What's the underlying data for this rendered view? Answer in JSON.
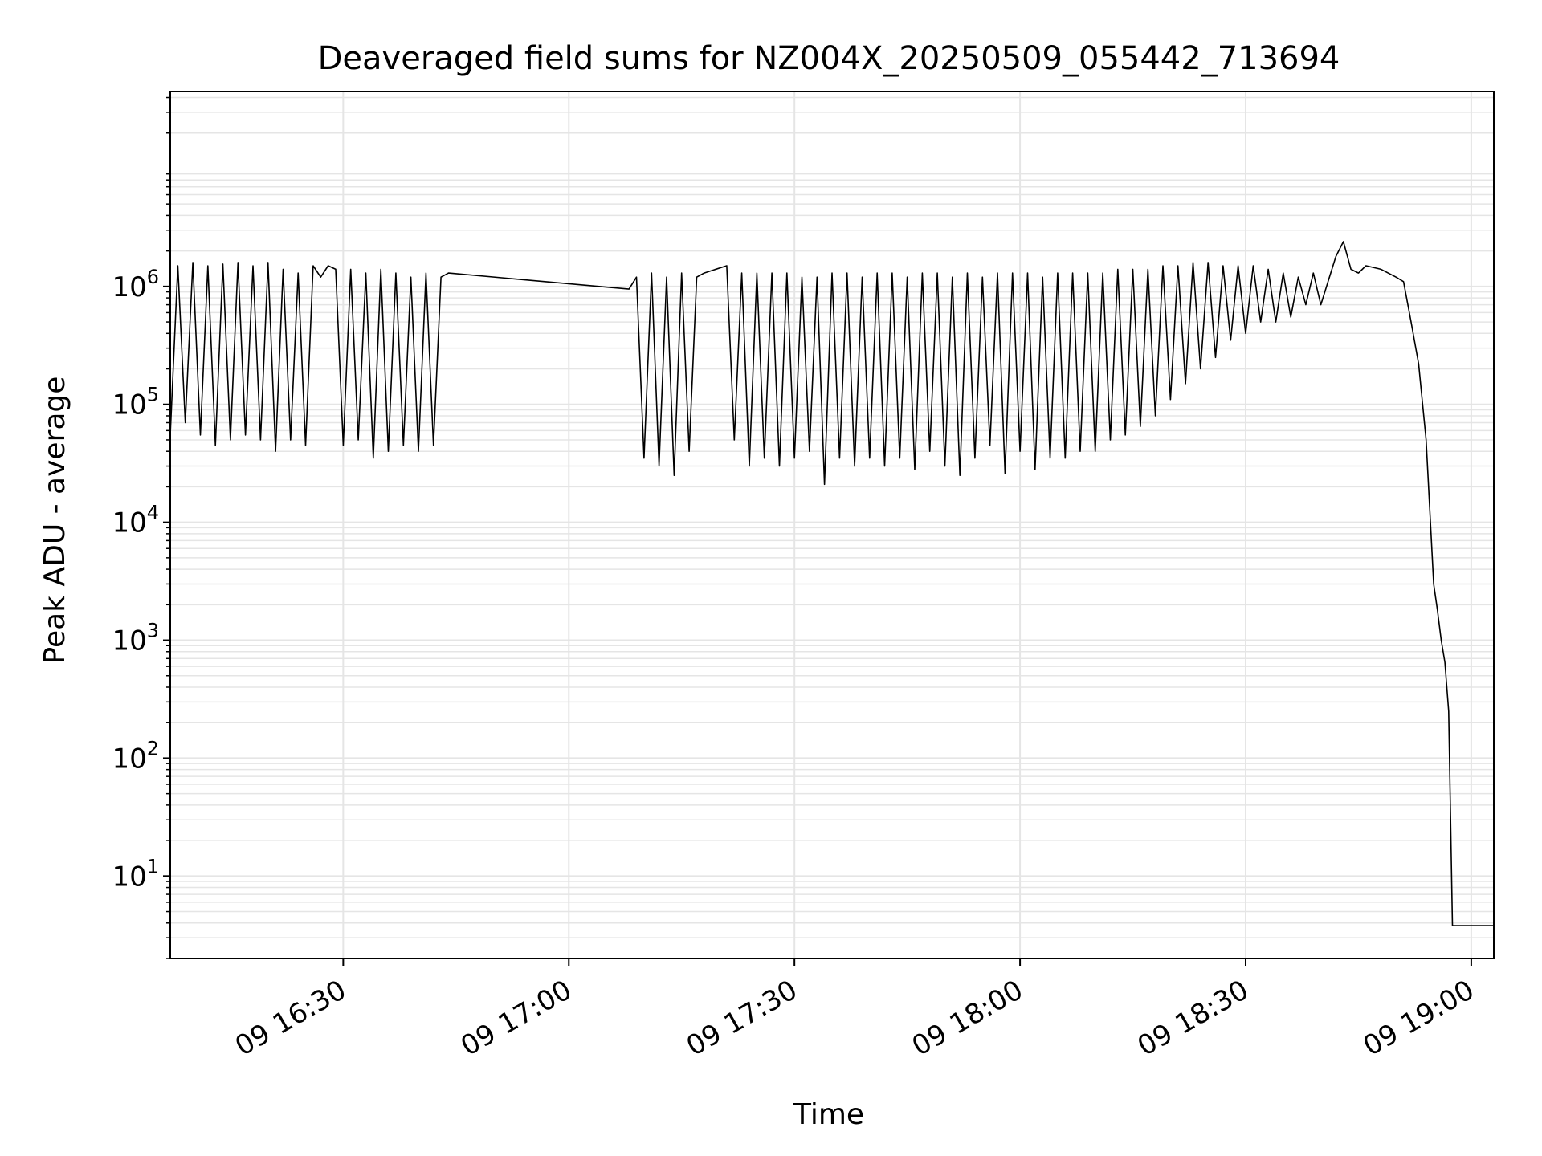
{
  "chart_data": {
    "type": "line",
    "title": "Deaveraged field sums for NZ004X_20250509_055442_713694",
    "xlabel": "Time",
    "ylabel": "Peak ADU - average",
    "yscale": "log",
    "ylim": [
      2,
      45000000
    ],
    "xlim": [
      "2025-05-09 16:07",
      "2025-05-09 19:03"
    ],
    "x_ticks": [
      {
        "t": "2025-05-09 16:30",
        "label": "09 16:30"
      },
      {
        "t": "2025-05-09 17:00",
        "label": "09 17:00"
      },
      {
        "t": "2025-05-09 17:30",
        "label": "09 17:30"
      },
      {
        "t": "2025-05-09 18:00",
        "label": "09 18:00"
      },
      {
        "t": "2025-05-09 18:30",
        "label": "09 18:30"
      },
      {
        "t": "2025-05-09 19:00",
        "label": "09 19:00"
      }
    ],
    "y_ticks": [
      {
        "value": 10,
        "base": "10",
        "exp": "1"
      },
      {
        "value": 100,
        "base": "10",
        "exp": "2"
      },
      {
        "value": 1000,
        "base": "10",
        "exp": "3"
      },
      {
        "value": 10000,
        "base": "10",
        "exp": "4"
      },
      {
        "value": 100000,
        "base": "10",
        "exp": "5"
      },
      {
        "value": 1000000,
        "base": "10",
        "exp": "6"
      }
    ],
    "grid": true,
    "legend": "none",
    "line_color": "#000000",
    "grid_color": "#e5e5e5",
    "series": [
      {
        "points": [
          [
            "2025-05-09 16:07",
            55000
          ],
          [
            "2025-05-09 16:08",
            1500000
          ],
          [
            "2025-05-09 16:09",
            70000
          ],
          [
            "2025-05-09 16:10",
            1600000
          ],
          [
            "2025-05-09 16:11",
            55000
          ],
          [
            "2025-05-09 16:12",
            1500000
          ],
          [
            "2025-05-09 16:13",
            45000
          ],
          [
            "2025-05-09 16:14",
            1550000
          ],
          [
            "2025-05-09 16:15",
            50000
          ],
          [
            "2025-05-09 16:16",
            1600000
          ],
          [
            "2025-05-09 16:17",
            55000
          ],
          [
            "2025-05-09 16:18",
            1500000
          ],
          [
            "2025-05-09 16:19",
            50000
          ],
          [
            "2025-05-09 16:20",
            1600000
          ],
          [
            "2025-05-09 16:21",
            40000
          ],
          [
            "2025-05-09 16:22",
            1400000
          ],
          [
            "2025-05-09 16:23",
            50000
          ],
          [
            "2025-05-09 16:24",
            1300000
          ],
          [
            "2025-05-09 16:25",
            45000
          ],
          [
            "2025-05-09 16:26",
            1500000
          ],
          [
            "2025-05-09 16:27",
            1200000
          ],
          [
            "2025-05-09 16:28",
            1500000
          ],
          [
            "2025-05-09 16:29",
            1400000
          ],
          [
            "2025-05-09 16:30",
            45000
          ],
          [
            "2025-05-09 16:31",
            1400000
          ],
          [
            "2025-05-09 16:32",
            50000
          ],
          [
            "2025-05-09 16:33",
            1300000
          ],
          [
            "2025-05-09 16:34",
            35000
          ],
          [
            "2025-05-09 16:35",
            1400000
          ],
          [
            "2025-05-09 16:36",
            40000
          ],
          [
            "2025-05-09 16:37",
            1300000
          ],
          [
            "2025-05-09 16:38",
            45000
          ],
          [
            "2025-05-09 16:39",
            1200000
          ],
          [
            "2025-05-09 16:40",
            40000
          ],
          [
            "2025-05-09 16:41",
            1300000
          ],
          [
            "2025-05-09 16:42",
            45000
          ],
          [
            "2025-05-09 16:43",
            1200000
          ],
          [
            "2025-05-09 16:44",
            1300000
          ],
          [
            "2025-05-09 17:08",
            950000
          ],
          [
            "2025-05-09 17:09",
            1200000
          ],
          [
            "2025-05-09 17:10",
            35000
          ],
          [
            "2025-05-09 17:11",
            1300000
          ],
          [
            "2025-05-09 17:12",
            30000
          ],
          [
            "2025-05-09 17:13",
            1200000
          ],
          [
            "2025-05-09 17:14",
            25000
          ],
          [
            "2025-05-09 17:15",
            1300000
          ],
          [
            "2025-05-09 17:16",
            40000
          ],
          [
            "2025-05-09 17:17",
            1200000
          ],
          [
            "2025-05-09 17:18",
            1300000
          ],
          [
            "2025-05-09 17:21",
            1500000
          ],
          [
            "2025-05-09 17:22",
            50000
          ],
          [
            "2025-05-09 17:23",
            1300000
          ],
          [
            "2025-05-09 17:24",
            30000
          ],
          [
            "2025-05-09 17:25",
            1300000
          ],
          [
            "2025-05-09 17:26",
            35000
          ],
          [
            "2025-05-09 17:27",
            1300000
          ],
          [
            "2025-05-09 17:28",
            30000
          ],
          [
            "2025-05-09 17:29",
            1300000
          ],
          [
            "2025-05-09 17:30",
            35000
          ],
          [
            "2025-05-09 17:31",
            1200000
          ],
          [
            "2025-05-09 17:32",
            40000
          ],
          [
            "2025-05-09 17:33",
            1200000
          ],
          [
            "2025-05-09 17:34",
            21000
          ],
          [
            "2025-05-09 17:35",
            1300000
          ],
          [
            "2025-05-09 17:36",
            35000
          ],
          [
            "2025-05-09 17:37",
            1300000
          ],
          [
            "2025-05-09 17:38",
            30000
          ],
          [
            "2025-05-09 17:39",
            1200000
          ],
          [
            "2025-05-09 17:40",
            35000
          ],
          [
            "2025-05-09 17:41",
            1300000
          ],
          [
            "2025-05-09 17:42",
            30000
          ],
          [
            "2025-05-09 17:43",
            1300000
          ],
          [
            "2025-05-09 17:44",
            35000
          ],
          [
            "2025-05-09 17:45",
            1200000
          ],
          [
            "2025-05-09 17:46",
            28000
          ],
          [
            "2025-05-09 17:47",
            1300000
          ],
          [
            "2025-05-09 17:48",
            40000
          ],
          [
            "2025-05-09 17:49",
            1300000
          ],
          [
            "2025-05-09 17:50",
            30000
          ],
          [
            "2025-05-09 17:51",
            1200000
          ],
          [
            "2025-05-09 17:52",
            25000
          ],
          [
            "2025-05-09 17:53",
            1300000
          ],
          [
            "2025-05-09 17:54",
            35000
          ],
          [
            "2025-05-09 17:55",
            1200000
          ],
          [
            "2025-05-09 17:56",
            45000
          ],
          [
            "2025-05-09 17:57",
            1300000
          ],
          [
            "2025-05-09 17:58",
            26000
          ],
          [
            "2025-05-09 17:59",
            1300000
          ],
          [
            "2025-05-09 18:00",
            40000
          ],
          [
            "2025-05-09 18:01",
            1300000
          ],
          [
            "2025-05-09 18:02",
            28000
          ],
          [
            "2025-05-09 18:03",
            1200000
          ],
          [
            "2025-05-09 18:04",
            35000
          ],
          [
            "2025-05-09 18:05",
            1300000
          ],
          [
            "2025-05-09 18:06",
            35000
          ],
          [
            "2025-05-09 18:07",
            1300000
          ],
          [
            "2025-05-09 18:08",
            40000
          ],
          [
            "2025-05-09 18:09",
            1300000
          ],
          [
            "2025-05-09 18:10",
            40000
          ],
          [
            "2025-05-09 18:11",
            1300000
          ],
          [
            "2025-05-09 18:12",
            50000
          ],
          [
            "2025-05-09 18:13",
            1400000
          ],
          [
            "2025-05-09 18:14",
            55000
          ],
          [
            "2025-05-09 18:15",
            1400000
          ],
          [
            "2025-05-09 18:16",
            65000
          ],
          [
            "2025-05-09 18:17",
            1400000
          ],
          [
            "2025-05-09 18:18",
            80000
          ],
          [
            "2025-05-09 18:19",
            1500000
          ],
          [
            "2025-05-09 18:20",
            110000
          ],
          [
            "2025-05-09 18:21",
            1500000
          ],
          [
            "2025-05-09 18:22",
            150000
          ],
          [
            "2025-05-09 18:23",
            1600000
          ],
          [
            "2025-05-09 18:24",
            200000
          ],
          [
            "2025-05-09 18:25",
            1600000
          ],
          [
            "2025-05-09 18:26",
            250000
          ],
          [
            "2025-05-09 18:27",
            1500000
          ],
          [
            "2025-05-09 18:28",
            350000
          ],
          [
            "2025-05-09 18:29",
            1500000
          ],
          [
            "2025-05-09 18:30",
            400000
          ],
          [
            "2025-05-09 18:31",
            1500000
          ],
          [
            "2025-05-09 18:32",
            500000
          ],
          [
            "2025-05-09 18:33",
            1400000
          ],
          [
            "2025-05-09 18:34",
            500000
          ],
          [
            "2025-05-09 18:35",
            1300000
          ],
          [
            "2025-05-09 18:36",
            550000
          ],
          [
            "2025-05-09 18:37",
            1200000
          ],
          [
            "2025-05-09 18:38",
            700000
          ],
          [
            "2025-05-09 18:39",
            1300000
          ],
          [
            "2025-05-09 18:40",
            700000
          ],
          [
            "2025-05-09 18:42",
            1800000
          ],
          [
            "2025-05-09 18:43",
            2400000
          ],
          [
            "2025-05-09 18:44",
            1400000
          ],
          [
            "2025-05-09 18:45",
            1300000
          ],
          [
            "2025-05-09 18:46",
            1500000
          ],
          [
            "2025-05-09 18:48",
            1400000
          ],
          [
            "2025-05-09 18:50",
            1200000
          ],
          [
            "2025-05-09 18:51",
            1100000
          ],
          [
            "2025-05-09 18:52",
            500000
          ],
          [
            "2025-05-09 18:53",
            220000
          ],
          [
            "2025-05-09 18:54",
            50000
          ],
          [
            "2025-05-09 18:55",
            3000
          ],
          [
            "2025-05-09 18:55:30",
            1800
          ],
          [
            "2025-05-09 18:56",
            1000
          ],
          [
            "2025-05-09 18:56:30",
            650
          ],
          [
            "2025-05-09 18:57",
            250
          ],
          [
            "2025-05-09 18:57:30",
            3.8
          ],
          [
            "2025-05-09 19:03",
            3.8
          ]
        ]
      }
    ]
  }
}
